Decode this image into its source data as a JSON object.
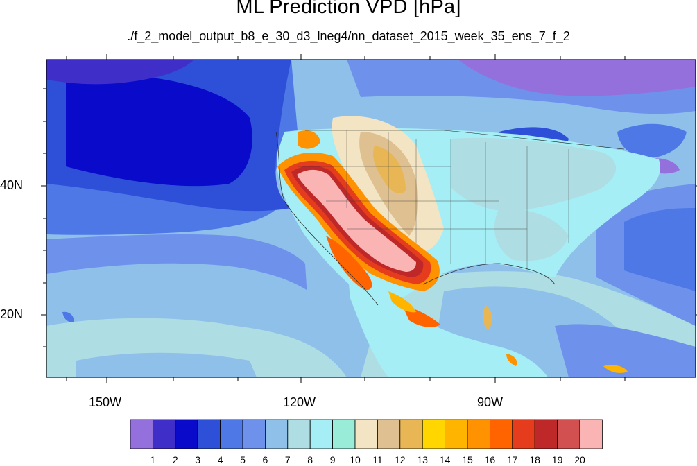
{
  "title": "ML Prediction VPD [hPa]",
  "subtitle": "./f_2_model_output_b8_e_30_d3_lneg4/nn_dataset_2015_week_35_ens_7_f_2",
  "axes": {
    "x_ticks": [
      "150W",
      "120W",
      "90W"
    ],
    "y_ticks": [
      "40N",
      "20N"
    ]
  },
  "colorbar": {
    "labels": [
      "1",
      "2",
      "3",
      "4",
      "5",
      "6",
      "7",
      "8",
      "9",
      "10",
      "11",
      "12",
      "13",
      "14",
      "15",
      "16",
      "17",
      "18",
      "19",
      "20"
    ],
    "colors": [
      "#9370DB",
      "#3F2FC8",
      "#0A0ACB",
      "#2E4FD8",
      "#4D78E6",
      "#6E92EC",
      "#8FC0EA",
      "#AEDEE3",
      "#A5EEF5",
      "#98ECD8",
      "#F3E4C3",
      "#DFC090",
      "#E8B655",
      "#FFD600",
      "#FFB400",
      "#FF9200",
      "#FF6400",
      "#E63C1E",
      "#BE2828",
      "#D25050",
      "#FAB4B4"
    ]
  }
}
